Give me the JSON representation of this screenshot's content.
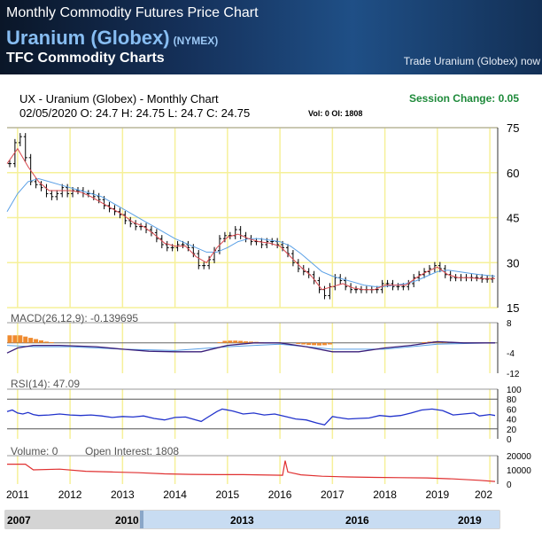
{
  "header": {
    "title": "Monthly Commodity Futures Price Chart",
    "commodity": "Uranium (Globex)",
    "exchange": "(NYMEX)",
    "subtitle": "TFC Commodity Charts",
    "trade_link": "Trade Uranium (Globex) now"
  },
  "chart_data": {
    "type": "candlestick",
    "title": "UX - Uranium (Globex) - Monthly Chart",
    "quote_line": "02/05/2020 O: 24.7 H: 24.75 L: 24.7 C: 24.75",
    "vol_oi_line": "Vol: 0 OI: 1808",
    "session_change": "Session Change: 0.05",
    "x_tick_labels": [
      "2011",
      "2012",
      "2013",
      "2014",
      "2015",
      "2016",
      "2017",
      "2018",
      "2019",
      "202"
    ],
    "x_range": [
      2010.8,
      2020.15
    ],
    "price": {
      "y_ticks": [
        75,
        60,
        45,
        30,
        15
      ],
      "ylim": [
        15,
        75
      ],
      "close": [
        [
          2010.85,
          63
        ],
        [
          2010.95,
          70
        ],
        [
          2011.05,
          72
        ],
        [
          2011.15,
          65
        ],
        [
          2011.25,
          57
        ],
        [
          2011.35,
          56
        ],
        [
          2011.45,
          55
        ],
        [
          2011.55,
          53
        ],
        [
          2011.65,
          52
        ],
        [
          2011.75,
          53
        ],
        [
          2011.85,
          55
        ],
        [
          2011.95,
          53
        ],
        [
          2012.05,
          54
        ],
        [
          2012.15,
          54
        ],
        [
          2012.25,
          53
        ],
        [
          2012.35,
          53
        ],
        [
          2012.45,
          52
        ],
        [
          2012.55,
          51
        ],
        [
          2012.65,
          49
        ],
        [
          2012.75,
          48
        ],
        [
          2012.85,
          47
        ],
        [
          2012.95,
          46
        ],
        [
          2013.05,
          44
        ],
        [
          2013.15,
          43
        ],
        [
          2013.25,
          42
        ],
        [
          2013.35,
          42
        ],
        [
          2013.45,
          41
        ],
        [
          2013.55,
          40
        ],
        [
          2013.65,
          38
        ],
        [
          2013.75,
          36
        ],
        [
          2013.85,
          35
        ],
        [
          2013.95,
          35
        ],
        [
          2014.05,
          36
        ],
        [
          2014.15,
          36
        ],
        [
          2014.25,
          35
        ],
        [
          2014.35,
          33
        ],
        [
          2014.45,
          29
        ],
        [
          2014.55,
          29
        ],
        [
          2014.65,
          31
        ],
        [
          2014.75,
          34
        ],
        [
          2014.85,
          38
        ],
        [
          2014.95,
          39
        ],
        [
          2015.05,
          39
        ],
        [
          2015.15,
          41
        ],
        [
          2015.25,
          39
        ],
        [
          2015.35,
          38
        ],
        [
          2015.45,
          37
        ],
        [
          2015.55,
          37
        ],
        [
          2015.65,
          36
        ],
        [
          2015.75,
          37
        ],
        [
          2015.85,
          37
        ],
        [
          2015.95,
          36
        ],
        [
          2016.05,
          35
        ],
        [
          2016.15,
          33
        ],
        [
          2016.25,
          30
        ],
        [
          2016.35,
          28
        ],
        [
          2016.45,
          27
        ],
        [
          2016.55,
          26
        ],
        [
          2016.65,
          24
        ],
        [
          2016.75,
          21
        ],
        [
          2016.85,
          19
        ],
        [
          2016.95,
          22
        ],
        [
          2017.05,
          25
        ],
        [
          2017.15,
          24
        ],
        [
          2017.25,
          22
        ],
        [
          2017.35,
          21
        ],
        [
          2017.45,
          21
        ],
        [
          2017.55,
          21
        ],
        [
          2017.65,
          21
        ],
        [
          2017.75,
          21
        ],
        [
          2017.85,
          21
        ],
        [
          2017.95,
          23
        ],
        [
          2018.05,
          23
        ],
        [
          2018.15,
          22
        ],
        [
          2018.25,
          22
        ],
        [
          2018.35,
          22
        ],
        [
          2018.45,
          23
        ],
        [
          2018.55,
          25
        ],
        [
          2018.65,
          26
        ],
        [
          2018.75,
          27
        ],
        [
          2018.85,
          28
        ],
        [
          2018.95,
          29
        ],
        [
          2019.05,
          28
        ],
        [
          2019.15,
          26
        ],
        [
          2019.25,
          25
        ],
        [
          2019.35,
          25
        ],
        [
          2019.45,
          25
        ],
        [
          2019.55,
          25
        ],
        [
          2019.65,
          25
        ],
        [
          2019.75,
          25
        ],
        [
          2019.85,
          24.5
        ],
        [
          2019.95,
          24.5
        ],
        [
          2020.05,
          24.75
        ]
      ],
      "ma_fast": [
        [
          2010.8,
          63
        ],
        [
          2011.0,
          68
        ],
        [
          2011.2,
          62
        ],
        [
          2011.4,
          57
        ],
        [
          2011.6,
          54
        ],
        [
          2011.8,
          54
        ],
        [
          2012.0,
          54
        ],
        [
          2012.2,
          53.5
        ],
        [
          2012.4,
          52
        ],
        [
          2012.6,
          50
        ],
        [
          2012.8,
          48
        ],
        [
          2013.0,
          46
        ],
        [
          2013.2,
          43.5
        ],
        [
          2013.4,
          42
        ],
        [
          2013.6,
          39.5
        ],
        [
          2013.8,
          36.5
        ],
        [
          2014.0,
          35.5
        ],
        [
          2014.2,
          35.5
        ],
        [
          2014.4,
          32
        ],
        [
          2014.6,
          30
        ],
        [
          2014.8,
          35
        ],
        [
          2015.0,
          38.5
        ],
        [
          2015.2,
          39.5
        ],
        [
          2015.4,
          38
        ],
        [
          2015.6,
          37
        ],
        [
          2015.8,
          36.5
        ],
        [
          2016.0,
          35.5
        ],
        [
          2016.2,
          32
        ],
        [
          2016.4,
          28.5
        ],
        [
          2016.6,
          25.5
        ],
        [
          2016.8,
          21
        ],
        [
          2017.0,
          22
        ],
        [
          2017.2,
          23
        ],
        [
          2017.4,
          21.5
        ],
        [
          2017.6,
          21
        ],
        [
          2017.8,
          21
        ],
        [
          2018.0,
          22.5
        ],
        [
          2018.2,
          22.5
        ],
        [
          2018.4,
          22.5
        ],
        [
          2018.6,
          25
        ],
        [
          2018.8,
          27
        ],
        [
          2019.0,
          28.5
        ],
        [
          2019.2,
          26
        ],
        [
          2019.4,
          25
        ],
        [
          2019.6,
          25
        ],
        [
          2019.8,
          24.7
        ],
        [
          2020.1,
          24.7
        ]
      ],
      "ma_slow": [
        [
          2010.8,
          47
        ],
        [
          2011.0,
          53
        ],
        [
          2011.2,
          57
        ],
        [
          2011.4,
          58
        ],
        [
          2011.6,
          57
        ],
        [
          2011.8,
          56
        ],
        [
          2012.0,
          55
        ],
        [
          2012.2,
          54
        ],
        [
          2012.4,
          53
        ],
        [
          2012.6,
          52
        ],
        [
          2012.8,
          50
        ],
        [
          2013.0,
          48
        ],
        [
          2013.2,
          46
        ],
        [
          2013.4,
          44
        ],
        [
          2013.6,
          42
        ],
        [
          2013.8,
          40
        ],
        [
          2014.0,
          38
        ],
        [
          2014.2,
          36.5
        ],
        [
          2014.4,
          35
        ],
        [
          2014.6,
          33.5
        ],
        [
          2014.8,
          33.5
        ],
        [
          2015.0,
          35
        ],
        [
          2015.2,
          37
        ],
        [
          2015.4,
          38
        ],
        [
          2015.6,
          38
        ],
        [
          2015.8,
          37.5
        ],
        [
          2016.0,
          37
        ],
        [
          2016.2,
          35.5
        ],
        [
          2016.4,
          33
        ],
        [
          2016.6,
          30
        ],
        [
          2016.8,
          27
        ],
        [
          2017.0,
          25.5
        ],
        [
          2017.2,
          24.5
        ],
        [
          2017.4,
          23.5
        ],
        [
          2017.6,
          22.5
        ],
        [
          2017.8,
          22
        ],
        [
          2018.0,
          22
        ],
        [
          2018.2,
          22.5
        ],
        [
          2018.4,
          23
        ],
        [
          2018.6,
          24
        ],
        [
          2018.8,
          25.5
        ],
        [
          2019.0,
          27
        ],
        [
          2019.2,
          27.5
        ],
        [
          2019.4,
          27
        ],
        [
          2019.6,
          26.5
        ],
        [
          2019.8,
          26
        ],
        [
          2020.1,
          25.5
        ]
      ]
    },
    "macd": {
      "label": "MACD(26,12,9): -0.139695",
      "y_ticks": [
        8,
        -4,
        -12
      ],
      "ylim": [
        -12,
        8
      ],
      "macd_line": [
        [
          2010.8,
          -4
        ],
        [
          2011.0,
          -2
        ],
        [
          2011.3,
          -1
        ],
        [
          2011.8,
          -1
        ],
        [
          2012.5,
          -1.5
        ],
        [
          2013.0,
          -2.5
        ],
        [
          2013.5,
          -3.3
        ],
        [
          2014.0,
          -3.5
        ],
        [
          2014.5,
          -3.5
        ],
        [
          2015.0,
          -1
        ],
        [
          2015.5,
          0
        ],
        [
          2016.0,
          0
        ],
        [
          2016.5,
          -1.5
        ],
        [
          2017.0,
          -3.5
        ],
        [
          2017.5,
          -3.5
        ],
        [
          2018.0,
          -2
        ],
        [
          2018.5,
          -1
        ],
        [
          2019.0,
          0.5
        ],
        [
          2019.5,
          0
        ],
        [
          2020.1,
          0
        ]
      ],
      "signal_line": [
        [
          2010.8,
          -1
        ],
        [
          2011.3,
          -1.5
        ],
        [
          2012.0,
          -1.5
        ],
        [
          2013.0,
          -2.5
        ],
        [
          2014.0,
          -3
        ],
        [
          2015.0,
          -1.5
        ],
        [
          2016.0,
          -0.5
        ],
        [
          2017.0,
          -2.5
        ],
        [
          2018.0,
          -2.5
        ],
        [
          2019.0,
          -0.5
        ],
        [
          2020.1,
          0
        ]
      ],
      "histogram": [
        [
          2010.85,
          3
        ],
        [
          2010.95,
          3
        ],
        [
          2011.05,
          3
        ],
        [
          2011.15,
          2.5
        ],
        [
          2011.25,
          2
        ],
        [
          2011.35,
          1.5
        ],
        [
          2011.45,
          1
        ],
        [
          2011.55,
          0.5
        ],
        [
          2011.65,
          0.3
        ],
        [
          2014.85,
          0.3
        ],
        [
          2014.95,
          0.8
        ],
        [
          2015.05,
          0.9
        ],
        [
          2015.15,
          0.9
        ],
        [
          2015.25,
          0.8
        ],
        [
          2015.35,
          0.6
        ],
        [
          2015.45,
          0.5
        ],
        [
          2015.55,
          0.4
        ],
        [
          2015.65,
          0.3
        ],
        [
          2016.35,
          -0.4
        ],
        [
          2016.45,
          -0.6
        ],
        [
          2016.55,
          -0.8
        ],
        [
          2016.65,
          -0.9
        ],
        [
          2016.75,
          -1
        ],
        [
          2016.85,
          -0.9
        ],
        [
          2016.95,
          -0.6
        ],
        [
          2018.75,
          0.3
        ],
        [
          2018.85,
          0.5
        ],
        [
          2018.95,
          0.6
        ],
        [
          2019.05,
          0.5
        ],
        [
          2019.15,
          0.3
        ]
      ]
    },
    "rsi": {
      "label": "RSI(14): 47.09",
      "y_ticks": [
        100,
        80,
        60,
        40,
        20,
        0
      ],
      "ylim": [
        0,
        100
      ],
      "levels": [
        80,
        20
      ],
      "values": [
        [
          2010.8,
          55
        ],
        [
          2010.9,
          58
        ],
        [
          2011.0,
          52
        ],
        [
          2011.1,
          50
        ],
        [
          2011.2,
          53
        ],
        [
          2011.3,
          49
        ],
        [
          2011.4,
          47
        ],
        [
          2011.6,
          48
        ],
        [
          2011.8,
          50
        ],
        [
          2012.0,
          48
        ],
        [
          2012.2,
          47
        ],
        [
          2012.4,
          48
        ],
        [
          2012.6,
          46
        ],
        [
          2012.8,
          43
        ],
        [
          2013.0,
          45
        ],
        [
          2013.2,
          44
        ],
        [
          2013.4,
          46
        ],
        [
          2013.6,
          41
        ],
        [
          2013.8,
          38
        ],
        [
          2014.0,
          43
        ],
        [
          2014.2,
          44
        ],
        [
          2014.4,
          38
        ],
        [
          2014.5,
          35
        ],
        [
          2014.6,
          42
        ],
        [
          2014.8,
          55
        ],
        [
          2014.9,
          60
        ],
        [
          2015.1,
          56
        ],
        [
          2015.3,
          50
        ],
        [
          2015.5,
          52
        ],
        [
          2015.7,
          48
        ],
        [
          2015.9,
          50
        ],
        [
          2016.1,
          45
        ],
        [
          2016.3,
          40
        ],
        [
          2016.5,
          38
        ],
        [
          2016.7,
          32
        ],
        [
          2016.85,
          28
        ],
        [
          2017.0,
          45
        ],
        [
          2017.1,
          43
        ],
        [
          2017.3,
          40
        ],
        [
          2017.5,
          41
        ],
        [
          2017.7,
          42
        ],
        [
          2017.9,
          47
        ],
        [
          2018.1,
          45
        ],
        [
          2018.3,
          47
        ],
        [
          2018.5,
          52
        ],
        [
          2018.7,
          58
        ],
        [
          2018.9,
          60
        ],
        [
          2019.1,
          57
        ],
        [
          2019.3,
          48
        ],
        [
          2019.5,
          50
        ],
        [
          2019.7,
          52
        ],
        [
          2019.8,
          46
        ],
        [
          2020.0,
          49
        ],
        [
          2020.1,
          47
        ]
      ]
    },
    "volume": {
      "label": "Volume: 0",
      "oi_label": "Open Interest: 1808",
      "y_ticks": [
        20000,
        10000,
        0
      ],
      "ylim": [
        0,
        20000
      ],
      "open_interest": [
        [
          2010.8,
          14000
        ],
        [
          2011.15,
          14000
        ],
        [
          2011.3,
          10000
        ],
        [
          2011.8,
          10500
        ],
        [
          2012.3,
          9000
        ],
        [
          2012.8,
          8500
        ],
        [
          2013.3,
          8000
        ],
        [
          2013.8,
          7200
        ],
        [
          2014.3,
          6800
        ],
        [
          2014.8,
          6600
        ],
        [
          2015.3,
          6600
        ],
        [
          2015.8,
          6300
        ],
        [
          2016.05,
          6200
        ],
        [
          2016.1,
          16500
        ],
        [
          2016.15,
          8500
        ],
        [
          2016.4,
          6500
        ],
        [
          2016.8,
          5500
        ],
        [
          2017.3,
          5000
        ],
        [
          2017.8,
          4700
        ],
        [
          2018.3,
          4500
        ],
        [
          2018.8,
          4300
        ],
        [
          2019.3,
          3600
        ],
        [
          2019.8,
          2600
        ],
        [
          2020.1,
          1808
        ]
      ]
    },
    "navigator": {
      "labels": [
        "2007",
        "2010",
        "2013",
        "2016",
        "2019"
      ]
    }
  }
}
